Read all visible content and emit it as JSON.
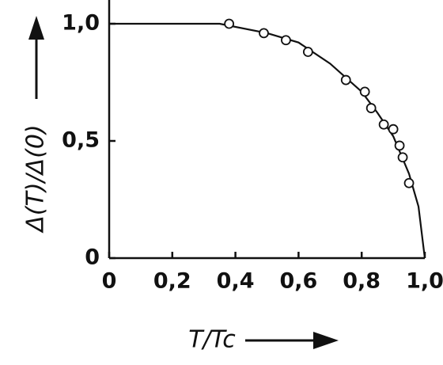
{
  "chart_data": {
    "type": "scatter",
    "xlabel": "T/Tc",
    "ylabel": "Δ(T)/Δ(0)",
    "xlim": [
      0,
      1
    ],
    "ylim": [
      0,
      1.1
    ],
    "xticks": [
      0,
      {
        "value": 0.2,
        "label": "0,2"
      },
      {
        "value": 0.4,
        "label": "0,4"
      },
      {
        "value": 0.6,
        "label": "0,6"
      },
      {
        "value": 0.8,
        "label": "0,8"
      },
      {
        "value": 1.0,
        "label": "1,0"
      }
    ],
    "yticks": [
      0,
      {
        "value": 0.5,
        "label": "0,5"
      },
      {
        "value": 1.0,
        "label": "1,0"
      }
    ],
    "grid": false,
    "series": [
      {
        "type": "line",
        "color": "#111111",
        "x": [
          0,
          0.35,
          0.5,
          0.6,
          0.7,
          0.8,
          0.85,
          0.9,
          0.95,
          0.98,
          1.0
        ],
        "values": [
          1.0,
          1.0,
          0.96,
          0.92,
          0.83,
          0.71,
          0.62,
          0.52,
          0.36,
          0.22,
          0
        ]
      },
      {
        "type": "scatter",
        "color": "#111111",
        "x": [
          0.38,
          0.49,
          0.56,
          0.63,
          0.75,
          0.81,
          0.83,
          0.87,
          0.9,
          0.92,
          0.93,
          0.95
        ],
        "values": [
          1.0,
          0.96,
          0.93,
          0.88,
          0.76,
          0.71,
          0.64,
          0.57,
          0.55,
          0.48,
          0.43,
          0.32
        ]
      }
    ]
  }
}
